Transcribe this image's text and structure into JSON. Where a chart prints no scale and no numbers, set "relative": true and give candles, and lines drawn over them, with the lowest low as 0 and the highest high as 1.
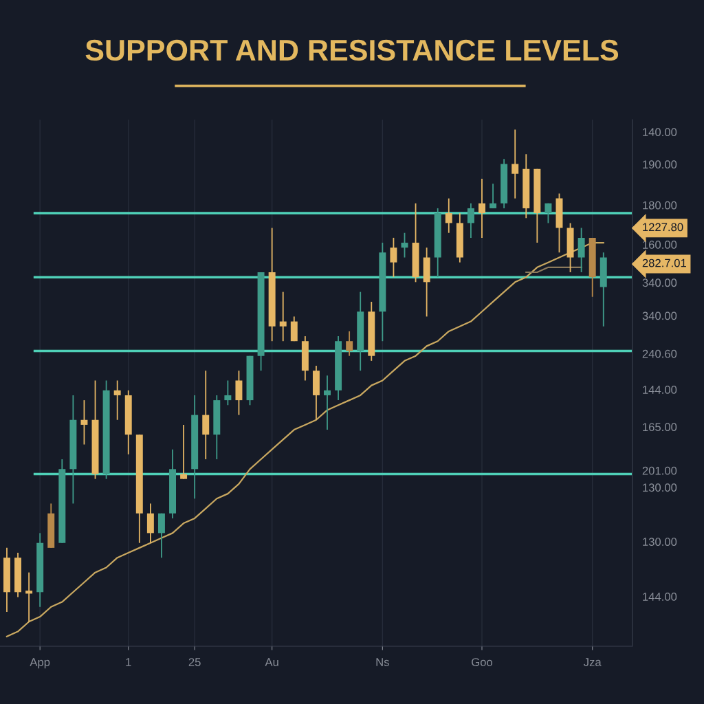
{
  "chart_data": {
    "type": "candlestick",
    "title": "SUPPORT AND RESISTANCE LEVELS",
    "categories": [
      null,
      null,
      null,
      "App",
      null,
      null,
      null,
      null,
      null,
      null,
      null,
      "1",
      null,
      null,
      null,
      null,
      null,
      "25",
      null,
      null,
      null,
      null,
      null,
      null,
      "Au",
      null,
      null,
      null,
      null,
      null,
      null,
      null,
      null,
      null,
      "Ns",
      null,
      null,
      null,
      null,
      null,
      null,
      null,
      null,
      "Goo",
      null,
      null,
      null,
      null,
      null,
      null,
      null,
      null,
      null,
      "Jza",
      null
    ],
    "ohlc": [
      [
        0.13,
        0.15,
        0.02,
        0.06
      ],
      [
        0.13,
        0.14,
        0.05,
        0.06
      ],
      [
        0.06,
        0.1,
        0.0,
        0.06
      ],
      [
        0.06,
        0.18,
        0.03,
        0.16
      ],
      [
        0.22,
        0.24,
        0.15,
        0.15
      ],
      [
        0.16,
        0.33,
        0.16,
        0.31
      ],
      [
        0.31,
        0.46,
        0.24,
        0.41
      ],
      [
        0.41,
        0.45,
        0.36,
        0.4
      ],
      [
        0.41,
        0.49,
        0.29,
        0.3
      ],
      [
        0.3,
        0.49,
        0.29,
        0.47
      ],
      [
        0.47,
        0.49,
        0.41,
        0.46
      ],
      [
        0.46,
        0.47,
        0.34,
        0.38
      ],
      [
        0.38,
        0.38,
        0.16,
        0.22
      ],
      [
        0.22,
        0.24,
        0.16,
        0.18
      ],
      [
        0.18,
        0.22,
        0.13,
        0.22
      ],
      [
        0.22,
        0.35,
        0.21,
        0.31
      ],
      [
        0.3,
        0.4,
        0.29,
        0.29
      ],
      [
        0.31,
        0.46,
        0.25,
        0.42
      ],
      [
        0.42,
        0.51,
        0.33,
        0.38
      ],
      [
        0.38,
        0.46,
        0.33,
        0.45
      ],
      [
        0.45,
        0.49,
        0.44,
        0.46
      ],
      [
        0.49,
        0.51,
        0.42,
        0.45
      ],
      [
        0.45,
        0.54,
        0.44,
        0.54
      ],
      [
        0.54,
        0.71,
        0.51,
        0.71
      ],
      [
        0.71,
        0.8,
        0.57,
        0.6
      ],
      [
        0.61,
        0.67,
        0.57,
        0.6
      ],
      [
        0.61,
        0.62,
        0.57,
        0.57
      ],
      [
        0.57,
        0.58,
        0.49,
        0.51
      ],
      [
        0.51,
        0.52,
        0.41,
        0.46
      ],
      [
        0.46,
        0.5,
        0.39,
        0.47
      ],
      [
        0.47,
        0.58,
        0.45,
        0.57
      ],
      [
        0.57,
        0.59,
        0.54,
        0.55
      ],
      [
        0.55,
        0.67,
        0.51,
        0.63
      ],
      [
        0.63,
        0.65,
        0.53,
        0.54
      ],
      [
        0.63,
        0.77,
        0.57,
        0.75
      ],
      [
        0.76,
        0.78,
        0.7,
        0.73
      ],
      [
        0.76,
        0.79,
        0.74,
        0.77
      ],
      [
        0.77,
        0.85,
        0.69,
        0.7
      ],
      [
        0.74,
        0.76,
        0.62,
        0.69
      ],
      [
        0.74,
        0.84,
        0.7,
        0.83
      ],
      [
        0.83,
        0.86,
        0.79,
        0.81
      ],
      [
        0.81,
        0.83,
        0.73,
        0.74
      ],
      [
        0.81,
        0.85,
        0.78,
        0.84
      ],
      [
        0.85,
        0.9,
        0.78,
        0.83
      ],
      [
        0.84,
        0.89,
        0.84,
        0.85
      ],
      [
        0.85,
        0.94,
        0.84,
        0.93
      ],
      [
        0.93,
        1.0,
        0.86,
        0.91
      ],
      [
        0.92,
        0.95,
        0.82,
        0.84
      ],
      [
        0.92,
        0.92,
        0.77,
        0.83
      ],
      [
        0.83,
        0.85,
        0.81,
        0.85
      ],
      [
        0.86,
        0.87,
        0.75,
        0.8
      ],
      [
        0.8,
        0.81,
        0.71,
        0.74
      ],
      [
        0.74,
        0.8,
        0.71,
        0.78
      ],
      [
        0.78,
        0.78,
        0.66,
        0.7
      ],
      [
        0.68,
        0.75,
        0.6,
        0.74
      ]
    ],
    "colors": [
      "#e6b765",
      "#e6b765",
      "#e6b765",
      "#3f9c8a",
      "#b8894a",
      "#3f9c8a",
      "#3f9c8a",
      "#e6b765",
      "#e6b765",
      "#3f9c8a",
      "#e6b765",
      "#e6b765",
      "#e6b765",
      "#e6b765",
      "#3f9c8a",
      "#3f9c8a",
      "#e6b765",
      "#3f9c8a",
      "#e6b765",
      "#3f9c8a",
      "#3f9c8a",
      "#e6b765",
      "#3f9c8a",
      "#3f9c8a",
      "#e6b765",
      "#e6b765",
      "#e6b765",
      "#e6b765",
      "#e6b765",
      "#3f9c8a",
      "#3f9c8a",
      "#b8894a",
      "#3f9c8a",
      "#e6b765",
      "#3f9c8a",
      "#e6b765",
      "#3f9c8a",
      "#e6b765",
      "#e6b765",
      "#3f9c8a",
      "#e6b765",
      "#e6b765",
      "#3f9c8a",
      "#e6b765",
      "#3f9c8a",
      "#3f9c8a",
      "#e6b765",
      "#e6b765",
      "#e6b765",
      "#3f9c8a",
      "#e6b765",
      "#e6b765",
      "#3f9c8a",
      "#b8894a",
      "#3f9c8a"
    ],
    "series": [
      {
        "type": "line",
        "color": "#c9a860",
        "values": [
          -0.03,
          -0.02,
          0.0,
          0.01,
          0.03,
          0.04,
          0.06,
          0.08,
          0.1,
          0.11,
          0.13,
          0.14,
          0.15,
          0.16,
          0.17,
          0.18,
          0.2,
          0.21,
          0.23,
          0.25,
          0.26,
          0.28,
          0.31,
          0.33,
          0.35,
          0.37,
          0.39,
          0.4,
          0.41,
          0.43,
          0.44,
          0.45,
          0.46,
          0.48,
          0.49,
          0.51,
          0.53,
          0.54,
          0.56,
          0.57,
          0.59,
          0.6,
          0.61,
          0.63,
          0.65,
          0.67,
          0.69,
          0.7,
          0.72,
          0.73,
          0.74,
          0.75,
          0.76,
          0.77,
          0.77
        ]
      },
      {
        "type": "line",
        "color": "#8c7a5c",
        "values": [
          null,
          null,
          null,
          null,
          null,
          null,
          null,
          null,
          null,
          null,
          null,
          null,
          null,
          null,
          null,
          null,
          null,
          null,
          null,
          null,
          null,
          null,
          null,
          null,
          null,
          null,
          null,
          null,
          null,
          null,
          null,
          null,
          null,
          null,
          null,
          null,
          null,
          null,
          null,
          null,
          null,
          null,
          null,
          null,
          null,
          null,
          null,
          0.71,
          0.71,
          0.72,
          0.72,
          0.72,
          0.72,
          null,
          null
        ]
      }
    ],
    "relative": true,
    "ref_lines": [
      {
        "axis": "y",
        "value": 0.83,
        "color": "#4fd1b8"
      },
      {
        "axis": "y",
        "value": 0.7,
        "color": "#4fd1b8"
      },
      {
        "axis": "y",
        "value": 0.55,
        "color": "#4fd1b8"
      },
      {
        "axis": "y",
        "value": 0.3,
        "color": "#4fd1b8"
      }
    ],
    "annotations": [
      "140.00",
      "190.00",
      "180.00",
      "160.00",
      "340.00",
      "340.00",
      "240.60",
      "144.00",
      "165.00",
      "201.00",
      "130.00",
      "130.00",
      "144.00",
      "1227.80",
      "282.7.01"
    ],
    "grid": "x",
    "marker": "none",
    "line_style": "solid",
    "legend": false
  }
}
